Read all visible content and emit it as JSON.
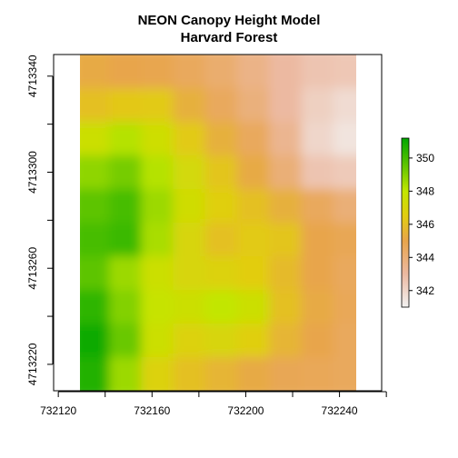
{
  "chart_data": {
    "type": "heatmap",
    "title": "NEON Canopy Height Model",
    "subtitle": "Harvard Forest",
    "xlabel": "",
    "ylabel": "",
    "xlim": [
      732118,
      732258
    ],
    "ylim": [
      4713209,
      4713349
    ],
    "data_extent": {
      "x": [
        732128,
        732251
      ],
      "y": [
        4713209,
        4713349
      ]
    },
    "x_ticks": [
      732120,
      732140,
      732160,
      732180,
      732200,
      732220,
      732240,
      732260
    ],
    "x_tick_labels": [
      "732120",
      "732160",
      "732200",
      "732240"
    ],
    "x_tick_label_values": [
      732120,
      732160,
      732200,
      732240
    ],
    "y_ticks": [
      4713220,
      4713240,
      4713260,
      4713280,
      4713300,
      4713320,
      4713340
    ],
    "y_tick_labels": [
      "4713220",
      "4713260",
      "4713300",
      "4713340"
    ],
    "y_tick_label_values": [
      4713220,
      4713260,
      4713300,
      4713340
    ],
    "legend": {
      "placement": "right",
      "range": [
        341,
        351.2
      ],
      "ticks": [
        342,
        344,
        346,
        348,
        350
      ],
      "tick_labels": [
        "342",
        "344",
        "346",
        "348",
        "350"
      ]
    },
    "colormap": {
      "name": "terrain (reversed)",
      "stops": [
        {
          "value": 341.0,
          "color": "#f2f2f2"
        },
        {
          "value": 343.0,
          "color": "#ecb9a1"
        },
        {
          "value": 345.0,
          "color": "#e8a54c"
        },
        {
          "value": 346.5,
          "color": "#e2cd10"
        },
        {
          "value": 348.0,
          "color": "#c2e600"
        },
        {
          "value": 349.5,
          "color": "#63c600"
        },
        {
          "value": 351.2,
          "color": "#00a600"
        }
      ]
    },
    "grid": false,
    "grid_values": {
      "rows_top_to_bottom": 10,
      "cols_left_to_right": 9,
      "values": [
        [
          345.2,
          345.0,
          344.9,
          344.6,
          344.2,
          343.6,
          343.0,
          342.6,
          342.5
        ],
        [
          346.0,
          346.3,
          346.4,
          345.4,
          344.6,
          343.9,
          343.0,
          342.2,
          341.8
        ],
        [
          347.6,
          348.2,
          347.5,
          346.4,
          345.4,
          344.6,
          343.4,
          342.0,
          341.5
        ],
        [
          348.8,
          349.2,
          348.2,
          347.2,
          346.2,
          345.2,
          344.0,
          342.6,
          342.4
        ],
        [
          349.6,
          350.0,
          348.6,
          347.4,
          346.6,
          346.0,
          345.4,
          344.6,
          344.0
        ],
        [
          350.0,
          350.2,
          348.4,
          347.0,
          346.0,
          346.4,
          346.2,
          345.0,
          344.8
        ],
        [
          349.6,
          348.6,
          347.6,
          347.0,
          346.8,
          346.5,
          345.8,
          345.0,
          344.6
        ],
        [
          350.4,
          349.0,
          347.8,
          347.6,
          348.0,
          347.6,
          346.0,
          345.2,
          344.7
        ],
        [
          351.0,
          349.4,
          347.6,
          346.8,
          347.0,
          346.6,
          345.6,
          345.0,
          344.6
        ],
        [
          350.6,
          348.6,
          346.8,
          346.0,
          345.6,
          345.2,
          344.8,
          344.7,
          344.6
        ]
      ]
    }
  }
}
